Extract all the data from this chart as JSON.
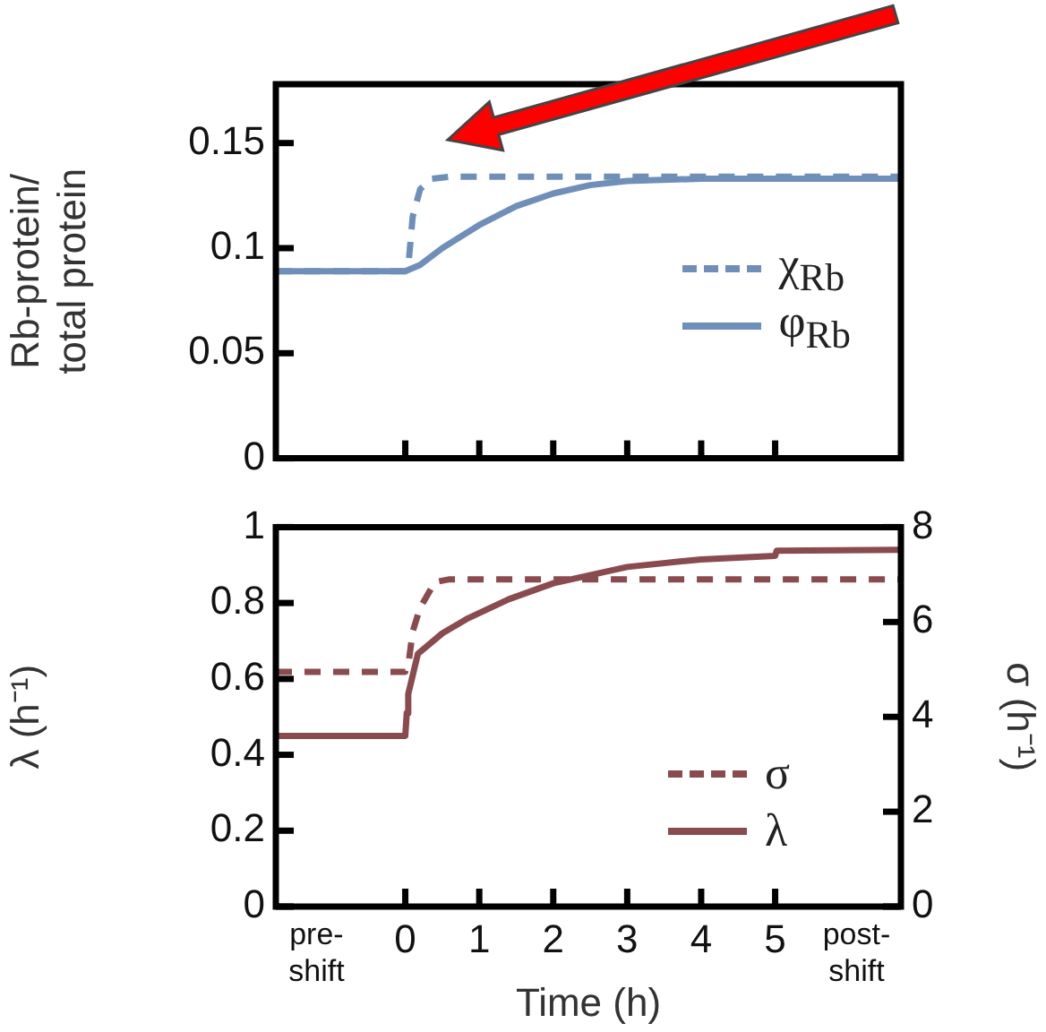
{
  "chart_data": [
    {
      "type": "line",
      "ylabel": "Rb-protein/total protein",
      "xlim": [
        -1.75,
        6.7
      ],
      "xticks": [
        0,
        1,
        2,
        3,
        4,
        5
      ],
      "ylim": [
        0,
        0.178
      ],
      "yticks": [
        0,
        0.05,
        0.1,
        0.15
      ],
      "tick_labels": "y",
      "legend": "center right",
      "series": [
        {
          "name": "χ$_{Rb}$",
          "color": "#6f8fb9",
          "line_style": "dashed",
          "x": [
            -1.75,
            0,
            0.05,
            0.1,
            0.2,
            0.35,
            0.6,
            6.7
          ],
          "values": [
            0.089,
            0.089,
            0.095,
            0.115,
            0.128,
            0.133,
            0.134,
            0.134
          ]
        },
        {
          "name": "φ$_{Rb}$",
          "color": "#6f8fb9",
          "line_style": "solid",
          "x": [
            -1.75,
            0,
            0.2,
            0.5,
            1,
            1.5,
            2,
            2.5,
            3,
            4,
            5,
            6.7
          ],
          "values": [
            0.089,
            0.089,
            0.092,
            0.1,
            0.111,
            0.12,
            0.126,
            0.13,
            0.132,
            0.133,
            0.133,
            0.133
          ]
        }
      ]
    },
    {
      "type": "line",
      "xlabel": "Time (h)",
      "ylabel": "λ (h⁻¹)",
      "y2label": "σ (h⁻¹)",
      "xlim": [
        -1.75,
        6.7
      ],
      "xticks": [
        {
          "value": -1.2,
          "label": "pre-shift"
        },
        0,
        1,
        2,
        3,
        4,
        5,
        {
          "value": 6.1,
          "label": "post-shift"
        }
      ],
      "ylim": [
        0,
        1
      ],
      "yticks": [
        0,
        0.2,
        0.4,
        0.6,
        0.8,
        1
      ],
      "y2lim": [
        0,
        8
      ],
      "y2ticks": [
        0,
        2,
        4,
        6,
        8
      ],
      "legend": "bottom right",
      "series": [
        {
          "name": "σ",
          "color": "#8a4b4f",
          "line_style": "dashed",
          "axis": "y2",
          "x": [
            -1.75,
            0,
            0.05,
            0.1,
            0.2,
            0.4,
            0.6,
            6.7
          ],
          "values": [
            4.95,
            4.95,
            5.2,
            5.8,
            6.3,
            6.84,
            6.9,
            6.9
          ]
        },
        {
          "name": "λ",
          "color": "#8a4b4f",
          "line_style": "solid",
          "x": [
            -1.75,
            0,
            0.02,
            0.04,
            0.17,
            0.5,
            0.85,
            1.4,
            2,
            3,
            4,
            5,
            5.02,
            6.7
          ],
          "values": [
            0.45,
            0.45,
            0.51,
            0.56,
            0.666,
            0.72,
            0.76,
            0.81,
            0.852,
            0.895,
            0.915,
            0.924,
            0.938,
            0.94
          ]
        }
      ]
    }
  ]
}
